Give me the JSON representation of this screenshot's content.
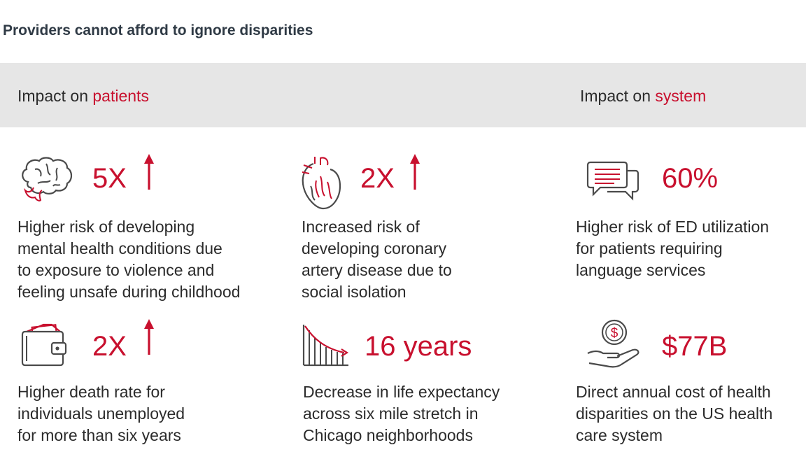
{
  "title": "Providers cannot afford to ignore disparities",
  "band": {
    "patients": {
      "prefix": "Impact on ",
      "highlight": "patients"
    },
    "system": {
      "prefix": "Impact on ",
      "highlight": "system"
    }
  },
  "colors": {
    "accent": "#c8102e",
    "text": "#2b2b2b",
    "band": "#e6e6e6",
    "icon": "#4a4a4a"
  },
  "cards": [
    {
      "icon": "brain-icon",
      "stat": "5X",
      "arrow": true,
      "lines": [
        "Higher risk of developing",
        "mental health conditions due",
        "to exposure to violence and",
        "feeling unsafe during childhood"
      ]
    },
    {
      "icon": "heart-icon",
      "stat": "2X",
      "arrow": true,
      "lines": [
        "Increased risk of",
        "developing coronary",
        "artery disease due to",
        "social isolation"
      ]
    },
    {
      "icon": "chat-bubbles-icon",
      "stat": "60%",
      "arrow": false,
      "lines": [
        "Higher risk of ED utilization",
        "for patients requiring",
        "language services"
      ]
    },
    {
      "icon": "wallet-icon",
      "stat": "2X",
      "arrow": true,
      "lines": [
        "Higher death rate for",
        "individuals unemployed",
        "for more than six years"
      ]
    },
    {
      "icon": "declining-chart-icon",
      "stat": "16 years",
      "arrow": false,
      "lines": [
        "Decrease in life expectancy",
        "across six mile stretch in",
        "Chicago neighborhoods"
      ]
    },
    {
      "icon": "coin-hand-icon",
      "stat": "$77B",
      "arrow": false,
      "lines": [
        "Direct annual cost of health",
        "disparities on the US health",
        "care system"
      ]
    }
  ]
}
